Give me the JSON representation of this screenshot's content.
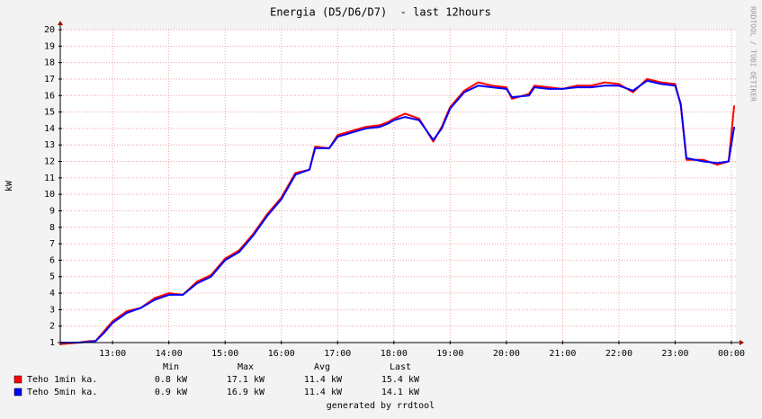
{
  "chart_data": {
    "type": "line",
    "title": "Energia (D5/D6/D7)  - last 12hours",
    "y_label": "kW",
    "side_text": "RRDTOOL / TOBI OETIKER",
    "footer": "generated by rrdtool",
    "x": [
      12.07,
      12.4,
      12.6,
      12.7,
      12.85,
      13.0,
      13.25,
      13.5,
      13.75,
      14.0,
      14.25,
      14.5,
      14.75,
      15.0,
      15.25,
      15.5,
      15.75,
      16.0,
      16.25,
      16.5,
      16.6,
      16.85,
      17.0,
      17.3,
      17.5,
      17.75,
      17.9,
      18.0,
      18.2,
      18.45,
      18.7,
      18.85,
      19.0,
      19.25,
      19.5,
      19.75,
      20.0,
      20.1,
      20.4,
      20.5,
      20.75,
      21.0,
      21.25,
      21.5,
      21.75,
      22.0,
      22.25,
      22.5,
      22.75,
      23.0,
      23.1,
      23.2,
      23.5,
      23.75,
      23.95,
      24.05
    ],
    "series": [
      {
        "name": "Teho 1min ka.",
        "color": "#ff0000",
        "stats": [
          "0.8 kW",
          "17.1 kW",
          "11.4 kW",
          "15.4 kW"
        ],
        "values": [
          0.9,
          1.0,
          1.1,
          1.1,
          1.7,
          2.3,
          2.9,
          3.1,
          3.7,
          4.0,
          3.9,
          4.7,
          5.1,
          6.1,
          6.6,
          7.6,
          8.8,
          9.8,
          11.3,
          11.5,
          12.9,
          12.8,
          13.6,
          13.9,
          14.1,
          14.2,
          14.4,
          14.6,
          14.9,
          14.6,
          13.2,
          14.1,
          15.3,
          16.3,
          16.8,
          16.6,
          16.5,
          15.8,
          16.1,
          16.6,
          16.5,
          16.4,
          16.6,
          16.6,
          16.8,
          16.7,
          16.2,
          17.0,
          16.8,
          16.7,
          15.4,
          12.1,
          12.1,
          11.8,
          12.0,
          15.4
        ]
      },
      {
        "name": "Teho 5min ka.",
        "color": "#0000ff",
        "stats": [
          "0.9 kW",
          "16.9 kW",
          "11.4 kW",
          "14.1 kW"
        ],
        "values": [
          1.0,
          1.0,
          1.05,
          1.1,
          1.6,
          2.2,
          2.8,
          3.1,
          3.6,
          3.9,
          3.9,
          4.6,
          5.0,
          6.0,
          6.5,
          7.5,
          8.7,
          9.7,
          11.2,
          11.5,
          12.8,
          12.8,
          13.5,
          13.8,
          14.0,
          14.1,
          14.3,
          14.5,
          14.7,
          14.5,
          13.3,
          14.0,
          15.2,
          16.2,
          16.6,
          16.5,
          16.4,
          15.9,
          16.0,
          16.5,
          16.4,
          16.4,
          16.5,
          16.5,
          16.6,
          16.6,
          16.3,
          16.9,
          16.7,
          16.6,
          15.5,
          12.2,
          12.0,
          11.9,
          12.0,
          14.1
        ]
      }
    ],
    "legend_headers": [
      "Min",
      "Max",
      "Avg",
      "Last"
    ],
    "xlim": [
      12.07,
      24.08
    ],
    "xticks": [
      {
        "value": 13,
        "label": "13:00"
      },
      {
        "value": 14,
        "label": "14:00"
      },
      {
        "value": 15,
        "label": "15:00"
      },
      {
        "value": 16,
        "label": "16:00"
      },
      {
        "value": 17,
        "label": "17:00"
      },
      {
        "value": 18,
        "label": "18:00"
      },
      {
        "value": 19,
        "label": "19:00"
      },
      {
        "value": 20,
        "label": "20:00"
      },
      {
        "value": 21,
        "label": "21:00"
      },
      {
        "value": 22,
        "label": "22:00"
      },
      {
        "value": 23,
        "label": "23:00"
      },
      {
        "value": 24,
        "label": "00:00"
      }
    ],
    "ylim": [
      1,
      20
    ],
    "yticks": [
      1,
      2,
      3,
      4,
      5,
      6,
      7,
      8,
      9,
      10,
      11,
      12,
      13,
      14,
      15,
      16,
      17,
      18,
      19,
      20
    ],
    "grid": true
  }
}
